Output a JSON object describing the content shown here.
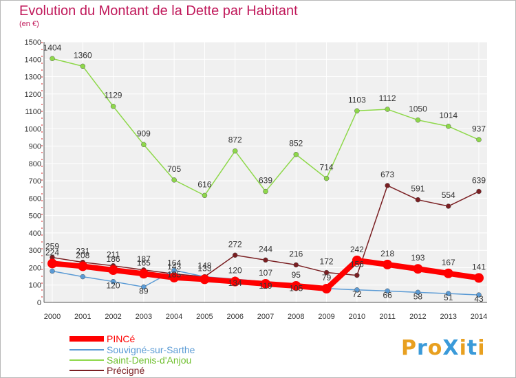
{
  "title": "Evolution du Montant de la Dette par Habitant",
  "unit": "(en €)",
  "logo": "ProXiti",
  "chart_data": {
    "type": "line",
    "x": [
      "2000",
      "2001",
      "2002",
      "2003",
      "2004",
      "2005",
      "2006",
      "2007",
      "2008",
      "2009",
      "2010",
      "2011",
      "2012",
      "2013",
      "2014"
    ],
    "ylim": [
      0,
      1500
    ],
    "yticks": [
      0,
      100,
      200,
      300,
      400,
      500,
      600,
      700,
      800,
      900,
      1000,
      1100,
      1200,
      1300,
      1400,
      1500
    ],
    "grid": true,
    "legend_position": "bottom-left",
    "series": [
      {
        "name": "PINCé",
        "color": "#ff0000",
        "values": [
          224,
          208,
          186,
          165,
          143,
          133,
          120,
          107,
          95,
          79,
          242,
          218,
          193,
          167,
          141
        ]
      },
      {
        "name": "Souvigné-sur-Sarthe",
        "color": "#5b9bd5",
        "values": [
          180,
          148,
          120,
          89,
          185,
          148,
          134,
          119,
          105,
          80,
          72,
          66,
          58,
          51,
          43
        ]
      },
      {
        "name": "Saint-Denis-d'Anjou",
        "color": "#8ed84a",
        "values": [
          1404,
          1360,
          1129,
          909,
          705,
          616,
          872,
          639,
          852,
          714,
          1103,
          1112,
          1050,
          1014,
          937
        ]
      },
      {
        "name": "Précigné",
        "color": "#7a1f22",
        "values": [
          259,
          231,
          211,
          187,
          164,
          148,
          272,
          244,
          216,
          172,
          156,
          673,
          591,
          554,
          639
        ]
      }
    ],
    "data_labels": [
      [
        "224",
        "208",
        "186",
        "165",
        "143",
        "133",
        "120",
        "107",
        "95",
        "79",
        "242",
        "218",
        "193",
        "167",
        "141"
      ],
      [
        "",
        "",
        "120",
        "89",
        "185",
        "",
        "134",
        "119",
        "105",
        "",
        "72",
        "66",
        "58",
        "51",
        "43"
      ],
      [
        "1404",
        "1360",
        "1129",
        "909",
        "705",
        "616",
        "872",
        "639",
        "852",
        "714",
        "1103",
        "1112",
        "1050",
        "1014",
        "937"
      ],
      [
        "259",
        "231",
        "211",
        "187",
        "164",
        "148",
        "272",
        "244",
        "216",
        "172",
        "156",
        "673",
        "591",
        "554",
        "639"
      ]
    ]
  }
}
